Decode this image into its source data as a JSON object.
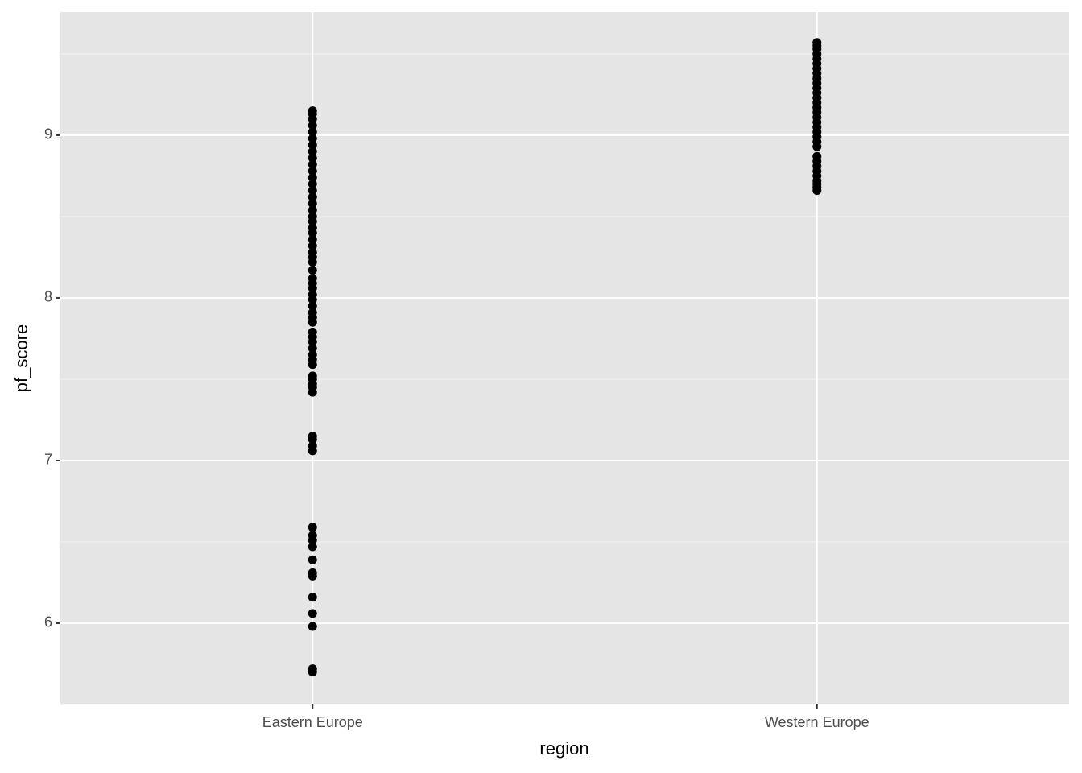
{
  "chart_data": {
    "type": "strip",
    "x_label": "region",
    "y_label": "pf_score",
    "categories": [
      "Eastern Europe",
      "Western Europe"
    ],
    "values": [
      [
        5.7,
        5.72,
        5.98,
        6.06,
        6.16,
        6.29,
        6.31,
        6.39,
        6.47,
        6.51,
        6.54,
        6.59,
        7.06,
        7.09,
        7.13,
        7.15,
        7.42,
        7.45,
        7.47,
        7.5,
        7.52,
        7.59,
        7.62,
        7.65,
        7.69,
        7.73,
        7.76,
        7.79,
        7.85,
        7.88,
        7.91,
        7.95,
        7.99,
        8.02,
        8.06,
        8.09,
        8.12,
        8.17,
        8.22,
        8.25,
        8.28,
        8.32,
        8.36,
        8.4,
        8.43,
        8.47,
        8.5,
        8.54,
        8.58,
        8.62,
        8.66,
        8.7,
        8.74,
        8.78,
        8.82,
        8.86,
        8.9,
        8.94,
        8.98,
        9.02,
        9.06,
        9.1,
        9.13,
        9.15
      ],
      [
        8.66,
        8.68,
        8.7,
        8.72,
        8.75,
        8.78,
        8.81,
        8.84,
        8.87,
        8.93,
        8.96,
        8.99,
        9.02,
        9.05,
        9.08,
        9.11,
        9.14,
        9.17,
        9.2,
        9.23,
        9.26,
        9.29,
        9.32,
        9.35,
        9.38,
        9.41,
        9.44,
        9.47,
        9.5,
        9.53,
        9.55,
        9.57
      ]
    ],
    "color": "#000000",
    "ylim": [
      5.505,
      9.757
    ],
    "yticks": [
      6,
      7,
      8,
      9
    ],
    "minor_yticks": [
      5.5,
      6.5,
      7.5,
      8.5,
      9.5
    ],
    "grid": true
  }
}
